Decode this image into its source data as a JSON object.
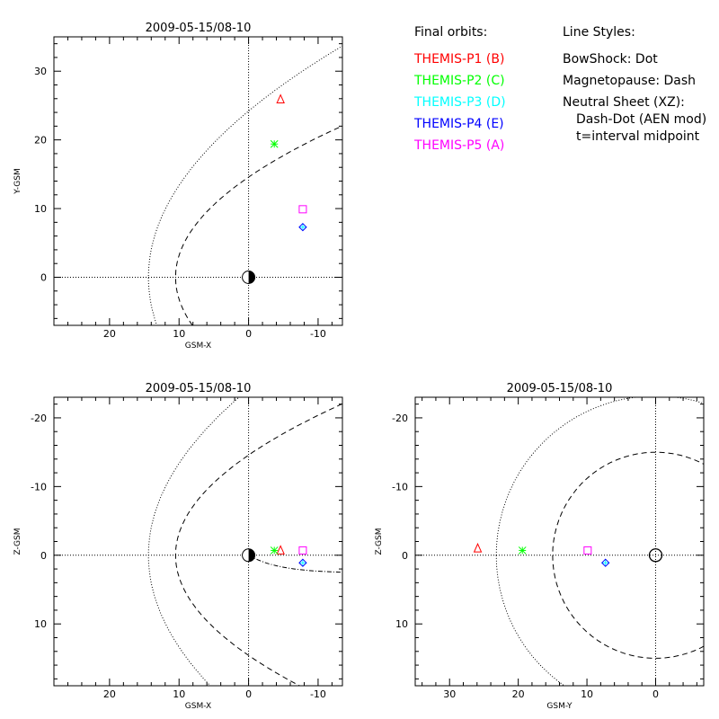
{
  "legend": {
    "orbits_header": "Final orbits:",
    "orbits": [
      {
        "label": "THEMIS-P1 (B)",
        "color": "#ff0000"
      },
      {
        "label": "THEMIS-P2 (C)",
        "color": "#00ff00"
      },
      {
        "label": "THEMIS-P3 (D)",
        "color": "#00ffff"
      },
      {
        "label": "THEMIS-P4 (E)",
        "color": "#0000ff"
      },
      {
        "label": "THEMIS-P5 (A)",
        "color": "#ff00ff"
      }
    ],
    "styles_header": "Line Styles:",
    "styles": [
      "BowShock: Dot",
      "Magnetopause: Dash",
      "Neutral Sheet (XZ):",
      "  Dash-Dot (AEN mod)",
      "  t=interval midpoint"
    ]
  },
  "chart_data": [
    {
      "type": "scatter",
      "title": "2009-05-15/08-10",
      "xlabel": "GSM-X",
      "ylabel": "Y-GSM",
      "xlim": [
        28,
        -13.5
      ],
      "ylim": [
        35,
        -7
      ],
      "xticks": [
        20,
        10,
        0,
        -10
      ],
      "yticks": [
        0,
        10,
        20,
        30
      ],
      "earth": [
        0,
        0
      ],
      "series": [
        {
          "name": "THEMIS-P1 (B)",
          "marker": "triangle",
          "color": "#ff0000",
          "x": -4.6,
          "y": 25.9
        },
        {
          "name": "THEMIS-P2 (C)",
          "marker": "asterisk",
          "color": "#00ff00",
          "x": -3.7,
          "y": 19.4
        },
        {
          "name": "THEMIS-P3 (D)",
          "marker": "plus",
          "color": "#00ffff",
          "x": -7.8,
          "y": 7.3
        },
        {
          "name": "THEMIS-P4 (E)",
          "marker": "diamond",
          "color": "#0000ff",
          "x": -7.8,
          "y": 7.3
        },
        {
          "name": "THEMIS-P5 (A)",
          "marker": "square",
          "color": "#ff00ff",
          "x": -7.8,
          "y": 9.9
        }
      ]
    },
    {
      "type": "scatter",
      "title": "2009-05-15/08-10",
      "xlabel": "GSM-X",
      "ylabel": "Z-GSM",
      "xlim": [
        28,
        -13.5
      ],
      "ylim": [
        -23,
        19
      ],
      "xticks": [
        20,
        10,
        0,
        -10
      ],
      "yticks": [
        -20,
        -10,
        0,
        10
      ],
      "earth": [
        0,
        0
      ],
      "series": [
        {
          "name": "THEMIS-P1 (B)",
          "marker": "triangle",
          "color": "#ff0000",
          "x": -4.6,
          "y": -0.7
        },
        {
          "name": "THEMIS-P2 (C)",
          "marker": "asterisk",
          "color": "#00ff00",
          "x": -3.7,
          "y": -0.7
        },
        {
          "name": "THEMIS-P3 (D)",
          "marker": "plus",
          "color": "#00ffff",
          "x": -7.8,
          "y": 1.1
        },
        {
          "name": "THEMIS-P4 (E)",
          "marker": "diamond",
          "color": "#0000ff",
          "x": -7.8,
          "y": 1.1
        },
        {
          "name": "THEMIS-P5 (A)",
          "marker": "square",
          "color": "#ff00ff",
          "x": -7.8,
          "y": -0.7
        }
      ]
    },
    {
      "type": "scatter",
      "title": "2009-05-15/08-10",
      "xlabel": "GSM-Y",
      "ylabel": "Z-GSM",
      "xlim": [
        35,
        -7
      ],
      "ylim": [
        -23,
        19
      ],
      "xticks": [
        30,
        20,
        10,
        0
      ],
      "yticks": [
        -20,
        -10,
        0,
        10
      ],
      "earth": [
        0,
        0
      ],
      "series": [
        {
          "name": "THEMIS-P1 (B)",
          "marker": "triangle",
          "color": "#ff0000",
          "x": 25.9,
          "y": -1.0
        },
        {
          "name": "THEMIS-P2 (C)",
          "marker": "asterisk",
          "color": "#00ff00",
          "x": 19.4,
          "y": -0.7
        },
        {
          "name": "THEMIS-P3 (D)",
          "marker": "plus",
          "color": "#00ffff",
          "x": 7.3,
          "y": 1.1
        },
        {
          "name": "THEMIS-P4 (E)",
          "marker": "diamond",
          "color": "#0000ff",
          "x": 7.3,
          "y": 1.1
        },
        {
          "name": "THEMIS-P5 (A)",
          "marker": "square",
          "color": "#ff00ff",
          "x": 9.9,
          "y": -0.7
        }
      ]
    }
  ]
}
